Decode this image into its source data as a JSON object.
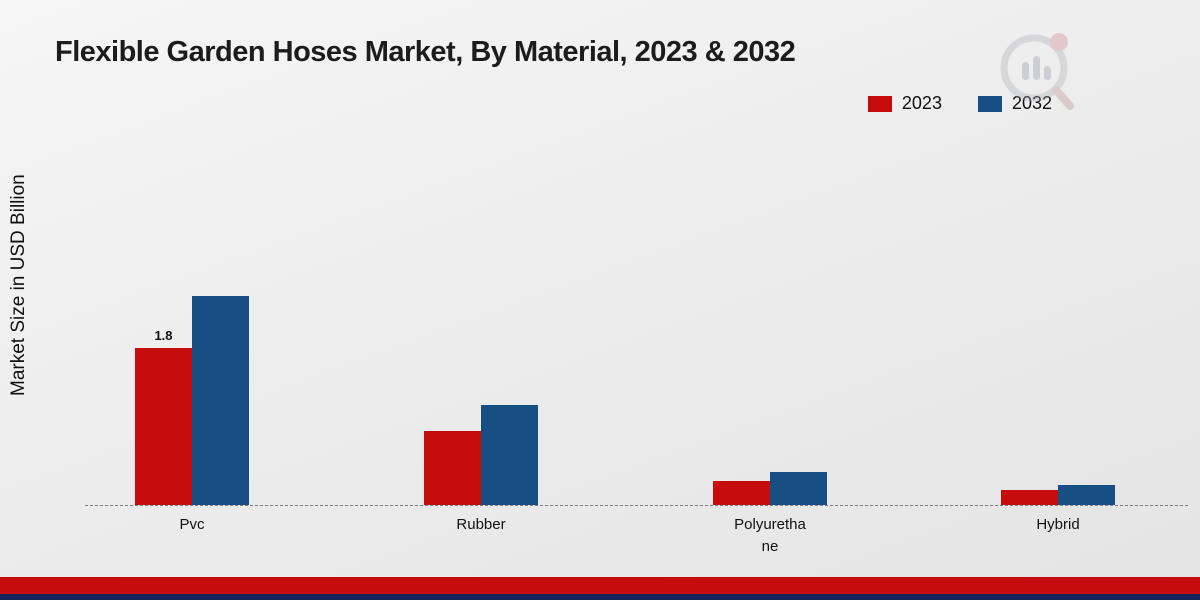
{
  "title": "Flexible Garden Hoses Market, By Material, 2023 & 2032",
  "y_axis_label": "Market Size in USD Billion",
  "legend": [
    {
      "label": "2023",
      "color": "#c60c0c"
    },
    {
      "label": "2032",
      "color": "#174f85"
    }
  ],
  "chart_data": {
    "type": "bar",
    "title": "Flexible Garden Hoses Market, By Material, 2023 & 2032",
    "categories": [
      "Pvc",
      "Rubber",
      "Polyurethane",
      "Hybrid"
    ],
    "series": [
      {
        "name": "2023",
        "color": "#c60c0c",
        "values": [
          1.8,
          0.85,
          0.28,
          0.17
        ],
        "labels": [
          "1.8",
          "",
          "",
          ""
        ]
      },
      {
        "name": "2032",
        "color": "#174f85",
        "values": [
          2.4,
          1.15,
          0.38,
          0.23
        ],
        "labels": [
          "",
          "",
          "",
          ""
        ]
      }
    ],
    "xlabel": "",
    "ylabel": "Market Size in USD Billion",
    "ylim": [
      0,
      2.6
    ],
    "grid": false,
    "baseline_dashed": true,
    "legend_position": "top-right"
  },
  "footer": {
    "red_strip_color": "#c60c0c",
    "navy_strip_color": "#14235a"
  }
}
